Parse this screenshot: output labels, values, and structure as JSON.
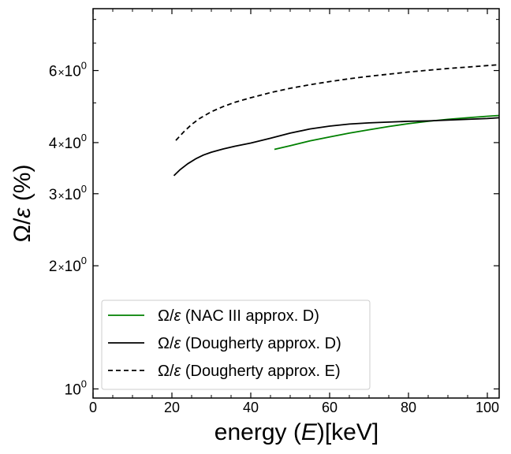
{
  "chart_data": {
    "type": "line",
    "xlabel": {
      "prefix": "energy (",
      "var": "E",
      "suffix": ")[keV]"
    },
    "ylabel": {
      "prefix": "Ω/",
      "var": "ε",
      "suffix": " (%)"
    },
    "xlim": [
      0,
      103
    ],
    "ylim": [
      0.95,
      8.5
    ],
    "yscale": "log",
    "x_ticks": [
      0,
      20,
      40,
      60,
      80,
      100
    ],
    "x_tick_labels": [
      "0",
      "20",
      "40",
      "60",
      "80",
      "100"
    ],
    "y_ticks": [
      {
        "value": 1,
        "mant": "",
        "exp": "0",
        "base": "10"
      },
      {
        "value": 2,
        "mant": "2",
        "exp": "0",
        "base": "10"
      },
      {
        "value": 3,
        "mant": "3",
        "exp": "0",
        "base": "10"
      },
      {
        "value": 4,
        "mant": "4",
        "exp": "0",
        "base": "10"
      },
      {
        "value": 6,
        "mant": "6",
        "exp": "0",
        "base": "10"
      }
    ],
    "y_minor_ticks": [
      5,
      7,
      8
    ],
    "legend_position": "lower-left",
    "series": [
      {
        "name": "Ω/ε (NAC III approx. D)",
        "legend": {
          "prefix": "Ω/",
          "var": "ε",
          "suffix": " (NAC III approx. D)"
        },
        "color": "#008000",
        "dash": "solid",
        "x": [
          46,
          50,
          55,
          60,
          65,
          70,
          75,
          80,
          85,
          90,
          95,
          100,
          103
        ],
        "y": [
          3.85,
          3.93,
          4.04,
          4.13,
          4.22,
          4.3,
          4.38,
          4.45,
          4.51,
          4.56,
          4.6,
          4.64,
          4.66
        ]
      },
      {
        "name": "Ω/ε (Dougherty approx. D)",
        "legend": {
          "prefix": "Ω/",
          "var": "ε",
          "suffix": " (Dougherty approx. D)"
        },
        "color": "#000000",
        "dash": "solid",
        "x": [
          20.5,
          22,
          24,
          26,
          28,
          30,
          33,
          36,
          40,
          45,
          50,
          55,
          60,
          65,
          70,
          75,
          80,
          85,
          90,
          95,
          100,
          103
        ],
        "y": [
          3.32,
          3.43,
          3.55,
          3.65,
          3.73,
          3.79,
          3.86,
          3.92,
          3.99,
          4.1,
          4.22,
          4.32,
          4.39,
          4.44,
          4.47,
          4.49,
          4.51,
          4.52,
          4.54,
          4.56,
          4.58,
          4.6
        ]
      },
      {
        "name": "Ω/ε (Dougherty approx. E)",
        "legend": {
          "prefix": "Ω/",
          "var": "ε",
          "suffix": " (Dougherty approx. E)"
        },
        "color": "#000000",
        "dash": "dashed",
        "x": [
          21,
          23,
          25,
          27,
          30,
          33,
          36,
          40,
          45,
          50,
          55,
          60,
          65,
          70,
          75,
          80,
          85,
          90,
          95,
          100,
          103
        ],
        "y": [
          4.05,
          4.25,
          4.43,
          4.58,
          4.76,
          4.9,
          5.02,
          5.15,
          5.3,
          5.43,
          5.54,
          5.64,
          5.73,
          5.81,
          5.88,
          5.95,
          6.01,
          6.07,
          6.12,
          6.17,
          6.2
        ]
      }
    ]
  }
}
